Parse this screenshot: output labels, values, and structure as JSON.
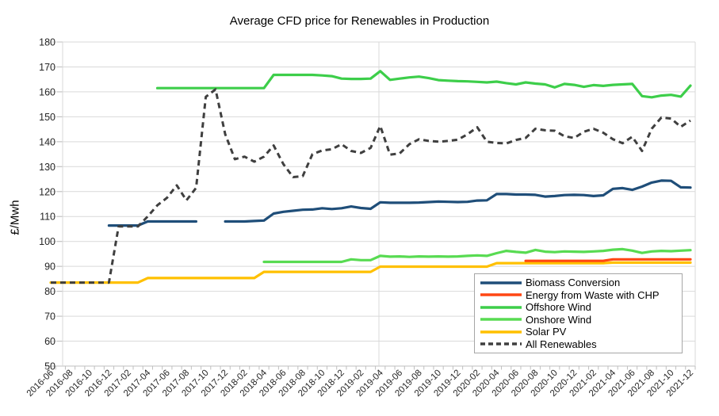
{
  "chart_data": {
    "type": "line",
    "title": "Average CFD price for Renewables in Production",
    "xlabel": "",
    "ylabel": "£/Mwh",
    "ylim": [
      50,
      180
    ],
    "ytick_step": 10,
    "grid": "horizontal",
    "grid_color": "#D9D9D9",
    "axis_color": "#BFBFBF",
    "tick_label_every": 2,
    "legend_position": "inside-bottom-right",
    "x": [
      "2016-06",
      "2016-07",
      "2016-08",
      "2016-09",
      "2016-10",
      "2016-11",
      "2016-12",
      "2017-01",
      "2017-02",
      "2017-03",
      "2017-04",
      "2017-05",
      "2017-06",
      "2017-07",
      "2017-08",
      "2017-09",
      "2017-10",
      "2017-11",
      "2017-12",
      "2018-01",
      "2018-02",
      "2018-03",
      "2018-04",
      "2018-05",
      "2018-06",
      "2018-07",
      "2018-08",
      "2018-09",
      "2018-10",
      "2018-11",
      "2018-12",
      "2019-01",
      "2019-02",
      "2019-03",
      "2019-04",
      "2019-05",
      "2019-06",
      "2019-07",
      "2019-08",
      "2019-09",
      "2019-10",
      "2019-11",
      "2019-12",
      "2020-01",
      "2020-02",
      "2020-03",
      "2020-04",
      "2020-05",
      "2020-06",
      "2020-07",
      "2020-08",
      "2020-09",
      "2020-10",
      "2020-11",
      "2020-12",
      "2021-01",
      "2021-02",
      "2021-03",
      "2021-04",
      "2021-05",
      "2021-06",
      "2021-07",
      "2021-08",
      "2021-09",
      "2021-10",
      "2021-11",
      "2021-12"
    ],
    "series": [
      {
        "name": "Biomass Conversion",
        "color": "#1F4E79",
        "dash": false,
        "values": [
          null,
          null,
          null,
          null,
          null,
          null,
          106.4,
          106.4,
          106.4,
          106.4,
          108,
          108,
          108,
          108,
          108,
          108,
          null,
          null,
          108,
          108,
          108,
          108.2,
          108.4,
          111.2,
          111.9,
          112.3,
          112.7,
          112.8,
          113.3,
          113,
          113.3,
          114,
          113.4,
          113.1,
          115.7,
          115.5,
          115.5,
          115.5,
          115.6,
          115.8,
          116,
          115.9,
          115.8,
          115.9,
          116.4,
          116.5,
          119,
          119,
          118.8,
          118.8,
          118.7,
          118,
          118.2,
          118.6,
          118.7,
          118.6,
          118.2,
          118.5,
          121.1,
          121.4,
          120.7,
          122,
          123.6,
          124.4,
          124.3,
          121.7,
          121.6
        ]
      },
      {
        "name": "Energy from Waste with CHP",
        "color": "#FF4713",
        "dash": false,
        "values": [
          null,
          null,
          null,
          null,
          null,
          null,
          null,
          null,
          null,
          null,
          null,
          null,
          null,
          null,
          null,
          null,
          null,
          null,
          null,
          null,
          null,
          null,
          null,
          null,
          null,
          null,
          null,
          null,
          null,
          null,
          null,
          null,
          null,
          null,
          null,
          null,
          null,
          null,
          null,
          null,
          null,
          null,
          null,
          null,
          null,
          null,
          null,
          null,
          null,
          92.2,
          92.2,
          92.2,
          92.2,
          92.2,
          92.2,
          92.2,
          92.2,
          92.2,
          92.8,
          92.8,
          92.8,
          92.8,
          92.8,
          92.8,
          92.8,
          92.8,
          92.8
        ]
      },
      {
        "name": "Offshore Wind",
        "color": "#3DCE4A",
        "dash": false,
        "values": [
          null,
          null,
          null,
          null,
          null,
          null,
          null,
          null,
          null,
          null,
          null,
          161.5,
          161.5,
          161.5,
          161.5,
          161.5,
          161.5,
          161.5,
          161.5,
          161.5,
          161.5,
          161.5,
          161.5,
          166.8,
          166.8,
          166.8,
          166.8,
          166.8,
          166.6,
          166.3,
          165.3,
          165.2,
          165.2,
          165.3,
          168.3,
          164.8,
          165.3,
          165.8,
          166.1,
          165.5,
          164.7,
          164.5,
          164.3,
          164.2,
          164,
          163.8,
          164.1,
          163.5,
          163,
          163.8,
          163.3,
          163,
          161.8,
          163.2,
          162.8,
          162,
          162.7,
          162.4,
          162.8,
          163,
          163.2,
          158.3,
          157.8,
          158.5,
          158.8,
          158.1,
          162.5
        ]
      },
      {
        "name": "Onshore Wind",
        "color": "#58DB52",
        "dash": false,
        "values": [
          null,
          null,
          null,
          null,
          null,
          null,
          null,
          null,
          null,
          null,
          null,
          null,
          null,
          null,
          null,
          null,
          null,
          null,
          null,
          null,
          null,
          null,
          91.8,
          91.8,
          91.8,
          91.8,
          91.8,
          91.8,
          91.8,
          91.8,
          91.8,
          92.8,
          92.5,
          92.5,
          94.2,
          93.9,
          94,
          93.8,
          94,
          93.9,
          94,
          93.9,
          94,
          94.2,
          94.4,
          94.2,
          95.3,
          96.2,
          95.8,
          95.5,
          96.6,
          95.9,
          95.7,
          96,
          95.9,
          95.8,
          96,
          96.2,
          96.7,
          96.9,
          96.3,
          95.4,
          96,
          96.2,
          96.1,
          96.3,
          96.5
        ]
      },
      {
        "name": "Solar PV",
        "color": "#FFC000",
        "dash": false,
        "values": [
          83.5,
          83.5,
          83.5,
          83.5,
          83.5,
          83.5,
          83.5,
          83.5,
          83.5,
          83.5,
          85.3,
          85.3,
          85.3,
          85.3,
          85.3,
          85.3,
          85.3,
          85.3,
          85.3,
          85.3,
          85.3,
          85.3,
          87.8,
          87.8,
          87.8,
          87.8,
          87.8,
          87.8,
          87.8,
          87.8,
          87.8,
          87.8,
          87.8,
          87.8,
          89.9,
          89.9,
          89.9,
          89.9,
          89.9,
          89.9,
          89.9,
          89.9,
          89.9,
          89.9,
          89.9,
          89.9,
          91.3,
          91.3,
          91.3,
          91.3,
          91.3,
          91.3,
          91.3,
          91.3,
          91.3,
          91.3,
          91.3,
          91.3,
          91.5,
          91.5,
          91.5,
          91.5,
          91.5,
          91.5,
          91.5,
          91.5,
          91.5
        ]
      },
      {
        "name": "All Renewables",
        "color": "#3F3F3F",
        "dash": true,
        "values": [
          83.5,
          83.5,
          83.5,
          83.5,
          83.5,
          83.5,
          83.5,
          106,
          106,
          106,
          110,
          114.5,
          117.5,
          122.5,
          116.5,
          121.5,
          158,
          161,
          143,
          133,
          134,
          132,
          134,
          138.5,
          131,
          125.8,
          126.2,
          135,
          136.5,
          137,
          139,
          136.3,
          135.5,
          137.5,
          146.3,
          134.8,
          135.3,
          139,
          141,
          140.3,
          140,
          140.3,
          140.8,
          143,
          145.8,
          140,
          139.5,
          139.3,
          140.7,
          141.5,
          145.2,
          144.6,
          144.4,
          142.2,
          141.5,
          144,
          145.2,
          143.6,
          141,
          139.4,
          142,
          136.3,
          145.2,
          149.7,
          149.3,
          146,
          148.5
        ]
      }
    ]
  }
}
